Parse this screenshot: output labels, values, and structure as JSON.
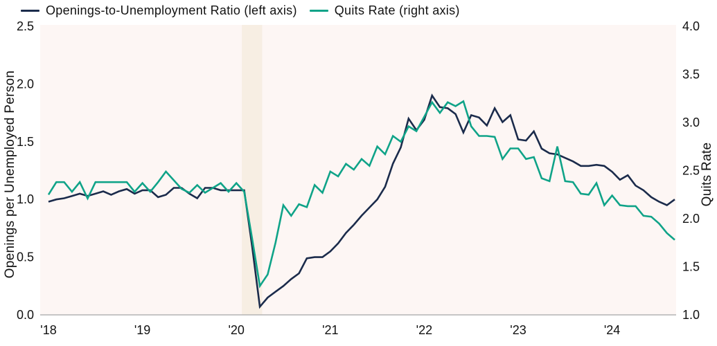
{
  "legend": [
    {
      "label": "Openings-to-Unemployment Ratio (left axis)",
      "color": "#1B2B4B"
    },
    {
      "label": "Quits Rate (right axis)",
      "color": "#0FA388"
    }
  ],
  "chart_data": {
    "type": "line",
    "x_unit": "month",
    "x_start": "2018-01",
    "x_end": "2024-09",
    "grid": false,
    "plot_bg": "#fdf6f4",
    "band_color": "#f7eee3",
    "axis_line_color": "#b3b3b3",
    "left_axis": {
      "label": "Openings per Unemployed Person",
      "range": [
        0.0,
        2.5
      ],
      "tick_labels": [
        "0.0",
        "0.5",
        "1.0",
        "1.5",
        "2.0",
        "2.5"
      ]
    },
    "right_axis": {
      "label": "Quits Rate",
      "range": [
        1.0,
        4.0
      ],
      "tick_labels": [
        "1.0",
        "1.5",
        "2.0",
        "2.5",
        "3.0",
        "3.5",
        "4.0"
      ]
    },
    "x_ticks": [
      {
        "label": "'18",
        "month_index": 0
      },
      {
        "label": "'19",
        "month_index": 12
      },
      {
        "label": "'20",
        "month_index": 24
      },
      {
        "label": "'21",
        "month_index": 36
      },
      {
        "label": "'22",
        "month_index": 48
      },
      {
        "label": "'23",
        "month_index": 60
      },
      {
        "label": "'24",
        "month_index": 72
      }
    ],
    "recession_band": {
      "period": "2020 recession",
      "from_month_index": 24.7,
      "to_month_index": 27.3
    },
    "series": [
      {
        "name": "Openings-to-Unemployment Ratio (left axis)",
        "axis": "left",
        "color": "#1B2B4B",
        "values": [
          0.98,
          1.0,
          1.01,
          1.03,
          1.05,
          1.03,
          1.05,
          1.07,
          1.04,
          1.07,
          1.09,
          1.05,
          1.08,
          1.08,
          1.02,
          1.04,
          1.1,
          1.1,
          1.05,
          1.01,
          1.1,
          1.1,
          1.08,
          1.08,
          1.08,
          1.08,
          0.6,
          0.07,
          0.15,
          0.2,
          0.25,
          0.31,
          0.36,
          0.49,
          0.5,
          0.5,
          0.55,
          0.62,
          0.71,
          0.78,
          0.86,
          0.93,
          1.0,
          1.11,
          1.31,
          1.45,
          1.7,
          1.6,
          1.69,
          1.9,
          1.8,
          1.79,
          1.74,
          1.58,
          1.73,
          1.71,
          1.64,
          1.79,
          1.67,
          1.73,
          1.52,
          1.51,
          1.59,
          1.44,
          1.4,
          1.39,
          1.36,
          1.33,
          1.29,
          1.29,
          1.3,
          1.29,
          1.24,
          1.17,
          1.21,
          1.12,
          1.08,
          1.02,
          0.98,
          0.95,
          1.0
        ]
      },
      {
        "name": "Quits Rate (right axis)",
        "axis": "right",
        "color": "#0FA388",
        "values": [
          2.25,
          2.38,
          2.38,
          2.28,
          2.38,
          2.21,
          2.38,
          2.38,
          2.38,
          2.38,
          2.38,
          2.28,
          2.37,
          2.28,
          2.38,
          2.49,
          2.4,
          2.31,
          2.27,
          2.35,
          2.27,
          2.32,
          2.37,
          2.28,
          2.37,
          2.28,
          1.8,
          1.3,
          1.42,
          1.75,
          2.14,
          2.03,
          2.15,
          2.12,
          2.35,
          2.27,
          2.49,
          2.44,
          2.57,
          2.51,
          2.62,
          2.55,
          2.75,
          2.67,
          2.86,
          2.8,
          2.96,
          2.91,
          3.06,
          3.21,
          3.1,
          3.21,
          3.17,
          3.22,
          2.96,
          2.86,
          2.86,
          2.85,
          2.62,
          2.73,
          2.73,
          2.62,
          2.64,
          2.42,
          2.39,
          2.75,
          2.39,
          2.38,
          2.26,
          2.25,
          2.37,
          2.14,
          2.24,
          2.14,
          2.13,
          2.13,
          2.03,
          2.02,
          1.95,
          1.85,
          1.78
        ]
      }
    ]
  }
}
